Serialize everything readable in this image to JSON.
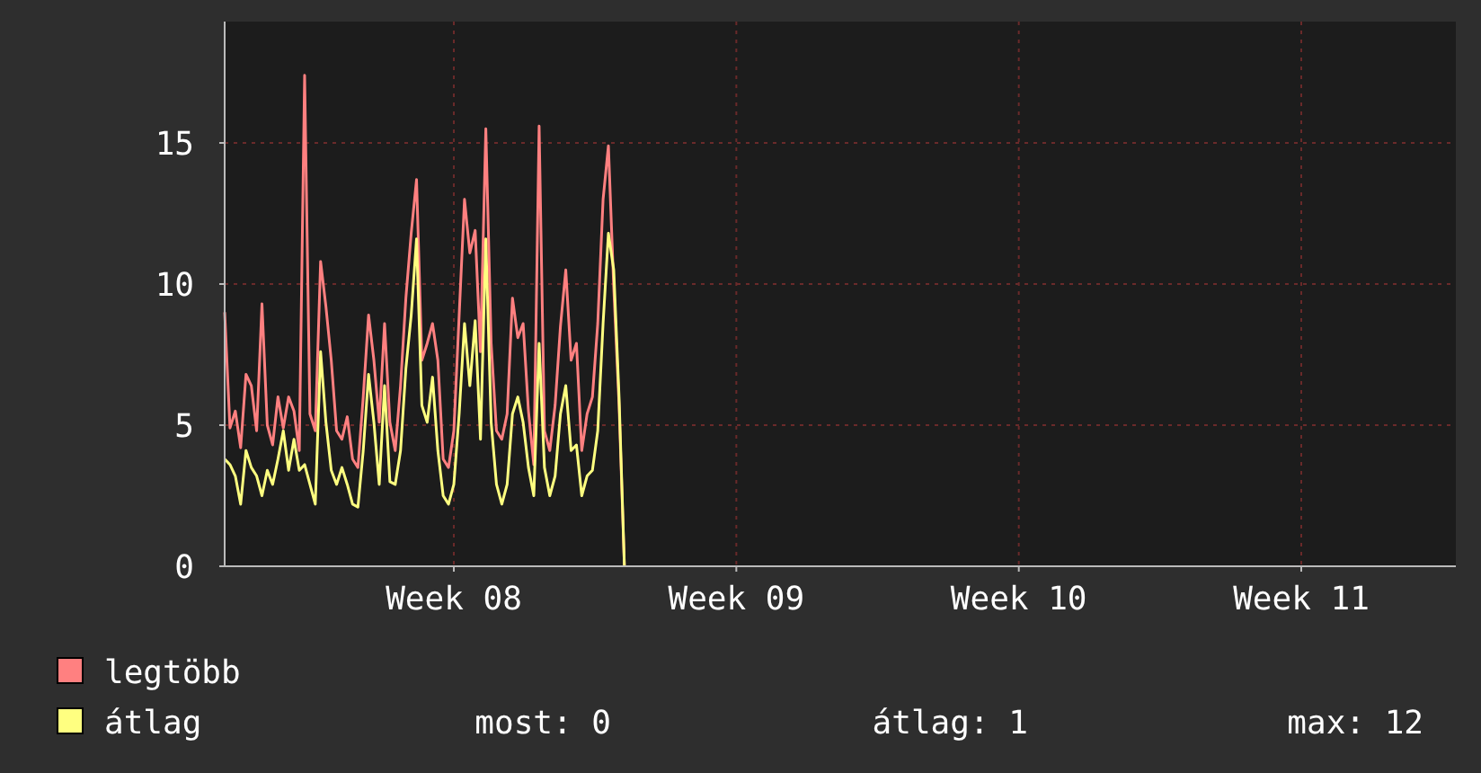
{
  "chart_data": {
    "type": "line",
    "categories": [
      null,
      null,
      null,
      null,
      null,
      null,
      null,
      null,
      null,
      null,
      null,
      null,
      null,
      null,
      null,
      null,
      null,
      null,
      null,
      null,
      null,
      null,
      null,
      null,
      null,
      null,
      null,
      null,
      null,
      null,
      null,
      null,
      null,
      null,
      null,
      null,
      null,
      null,
      null,
      null,
      null,
      null,
      null,
      "Week 08",
      null,
      null,
      null,
      null,
      null,
      null,
      null,
      null,
      null,
      null,
      null,
      null,
      null,
      null,
      null,
      null,
      null,
      null,
      null,
      null,
      null,
      null,
      null,
      null,
      null,
      null,
      null,
      null,
      null,
      null,
      null,
      null,
      null,
      null,
      null,
      null,
      null,
      null,
      null,
      null,
      null,
      null,
      null,
      null,
      null,
      null,
      null,
      null,
      null,
      null,
      null,
      null,
      "Week 09",
      null,
      null,
      null,
      null,
      null,
      null,
      null,
      null,
      null,
      null,
      null,
      null,
      null,
      null,
      null,
      null,
      null,
      null,
      null,
      null,
      null,
      null,
      null,
      null,
      null,
      null,
      null,
      null,
      null,
      null,
      null,
      null,
      null,
      null,
      null,
      null,
      null,
      null,
      null,
      null,
      null,
      null,
      null,
      null,
      null,
      null,
      null,
      null,
      null,
      null,
      null,
      null,
      "Week 10",
      null,
      null,
      null,
      null,
      null,
      null,
      null,
      null,
      null,
      null,
      null,
      null,
      null,
      null,
      null,
      null,
      null,
      null,
      null,
      null,
      null,
      null,
      null,
      null,
      null,
      null,
      null,
      null,
      null,
      null,
      null,
      null,
      null,
      null,
      null,
      null,
      null,
      null,
      null,
      null,
      null,
      null,
      null,
      null,
      null,
      null,
      null,
      null,
      null,
      null,
      null,
      null,
      "Week 11",
      null,
      null,
      null,
      null,
      null,
      null,
      null,
      null,
      null,
      null,
      null,
      null,
      null,
      null,
      null,
      null,
      null,
      null,
      null,
      null,
      null,
      null,
      null,
      null,
      null,
      null,
      null,
      null,
      null
    ],
    "series": [
      {
        "name": "legtöbb",
        "color": "#ff8080",
        "values": [
          9.0,
          4.9,
          5.5,
          4.2,
          6.8,
          6.4,
          4.8,
          9.3,
          5.0,
          4.3,
          6.0,
          4.9,
          6.0,
          5.5,
          4.1,
          17.4,
          5.4,
          4.8,
          10.8,
          9.2,
          7.3,
          4.8,
          4.5,
          5.3,
          3.8,
          3.5,
          6.0,
          8.9,
          7.3,
          5.1,
          8.6,
          5.1,
          4.1,
          6.4,
          9.5,
          11.8,
          13.7,
          7.3,
          7.9,
          8.6,
          7.3,
          3.8,
          3.5,
          4.8,
          8.9,
          13.0,
          11.1,
          11.9,
          7.6,
          15.5,
          7.9,
          4.8,
          4.5,
          5.4,
          9.5,
          8.1,
          8.6,
          5.5,
          3.6,
          15.6,
          4.8,
          4.1,
          5.7,
          8.5,
          10.5,
          7.3,
          7.9,
          4.1,
          5.4,
          6.0,
          8.6,
          13.0,
          14.9,
          9.9,
          5.7,
          0,
          null,
          null,
          null,
          null,
          null,
          null,
          null,
          null,
          null,
          null,
          null,
          null,
          null,
          null,
          null,
          null,
          null,
          null,
          null,
          null,
          null,
          null,
          null,
          null,
          null,
          null,
          null,
          null,
          null,
          null,
          null,
          null,
          null,
          null,
          null,
          null,
          null,
          null,
          null,
          null,
          null,
          null,
          null,
          null,
          null,
          null,
          null,
          null,
          null,
          null,
          null,
          null,
          null,
          null,
          null,
          null,
          null,
          null,
          null,
          null,
          null,
          null,
          null,
          null,
          null,
          null,
          null,
          null,
          null,
          null,
          null,
          null,
          null,
          null,
          null,
          null,
          null,
          null,
          null,
          null,
          null,
          null,
          null,
          null,
          null,
          null,
          null,
          null,
          null,
          null,
          null,
          null,
          null,
          null,
          null,
          null,
          null,
          null,
          null,
          null,
          null,
          null,
          null,
          null,
          null,
          null,
          null,
          null,
          null,
          null,
          null,
          null,
          null,
          null,
          null,
          null,
          null,
          null,
          null,
          null,
          null,
          null,
          null,
          null,
          null,
          null,
          null,
          null,
          null,
          null,
          null,
          null,
          null,
          null,
          null,
          null,
          null,
          null,
          null,
          null,
          null,
          null,
          null,
          null,
          null,
          null,
          null,
          null,
          null,
          null,
          null,
          null,
          null,
          null,
          null,
          null
        ]
      },
      {
        "name": "átlag",
        "color": "#ffff80",
        "values": [
          3.8,
          3.6,
          3.2,
          2.2,
          4.1,
          3.5,
          3.2,
          2.5,
          3.4,
          2.9,
          3.8,
          4.8,
          3.4,
          4.5,
          3.4,
          3.6,
          2.9,
          2.2,
          7.6,
          5.1,
          3.4,
          2.9,
          3.5,
          2.9,
          2.2,
          2.1,
          4.1,
          6.8,
          5.1,
          2.9,
          6.4,
          3.0,
          2.9,
          4.1,
          7.0,
          8.9,
          11.6,
          5.7,
          5.1,
          6.7,
          4.1,
          2.5,
          2.2,
          2.9,
          5.4,
          8.6,
          6.4,
          8.7,
          4.5,
          11.6,
          5.1,
          2.9,
          2.2,
          2.9,
          5.4,
          6.0,
          5.1,
          3.5,
          2.5,
          7.9,
          3.5,
          2.5,
          3.2,
          5.4,
          6.4,
          4.1,
          4.3,
          2.5,
          3.2,
          3.4,
          4.8,
          8.6,
          11.8,
          10.5,
          6.0,
          0,
          null,
          null,
          null,
          null,
          null,
          null,
          null,
          null,
          null,
          null,
          null,
          null,
          null,
          null,
          null,
          null,
          null,
          null,
          null,
          null,
          null,
          null,
          null,
          null,
          null,
          null,
          null,
          null,
          null,
          null,
          null,
          null,
          null,
          null,
          null,
          null,
          null,
          null,
          null,
          null,
          null,
          null,
          null,
          null,
          null,
          null,
          null,
          null,
          null,
          null,
          null,
          null,
          null,
          null,
          null,
          null,
          null,
          null,
          null,
          null,
          null,
          null,
          null,
          null,
          null,
          null,
          null,
          null,
          null,
          null,
          null,
          null,
          null,
          null,
          null,
          null,
          null,
          null,
          null,
          null,
          null,
          null,
          null,
          null,
          null,
          null,
          null,
          null,
          null,
          null,
          null,
          null,
          null,
          null,
          null,
          null,
          null,
          null,
          null,
          null,
          null,
          null,
          null,
          null,
          null,
          null,
          null,
          null,
          null,
          null,
          null,
          null,
          null,
          null,
          null,
          null,
          null,
          null,
          null,
          null,
          null,
          null,
          null,
          null,
          null,
          null,
          null,
          null,
          null,
          null,
          null,
          null,
          null,
          null,
          null,
          null,
          null,
          null,
          null,
          null,
          null,
          null,
          null,
          null,
          null,
          null,
          null,
          null,
          null,
          null,
          null,
          null,
          null,
          null,
          null,
          null
        ]
      }
    ],
    "ylim": [
      0,
      19.3
    ],
    "yticks": [
      0,
      5,
      10,
      15
    ],
    "grid": true,
    "legend": "bottom left",
    "line_style": "solid",
    "marker": "none",
    "annotations": [
      "most: 0",
      "átlag: 1",
      "max: 12"
    ]
  }
}
